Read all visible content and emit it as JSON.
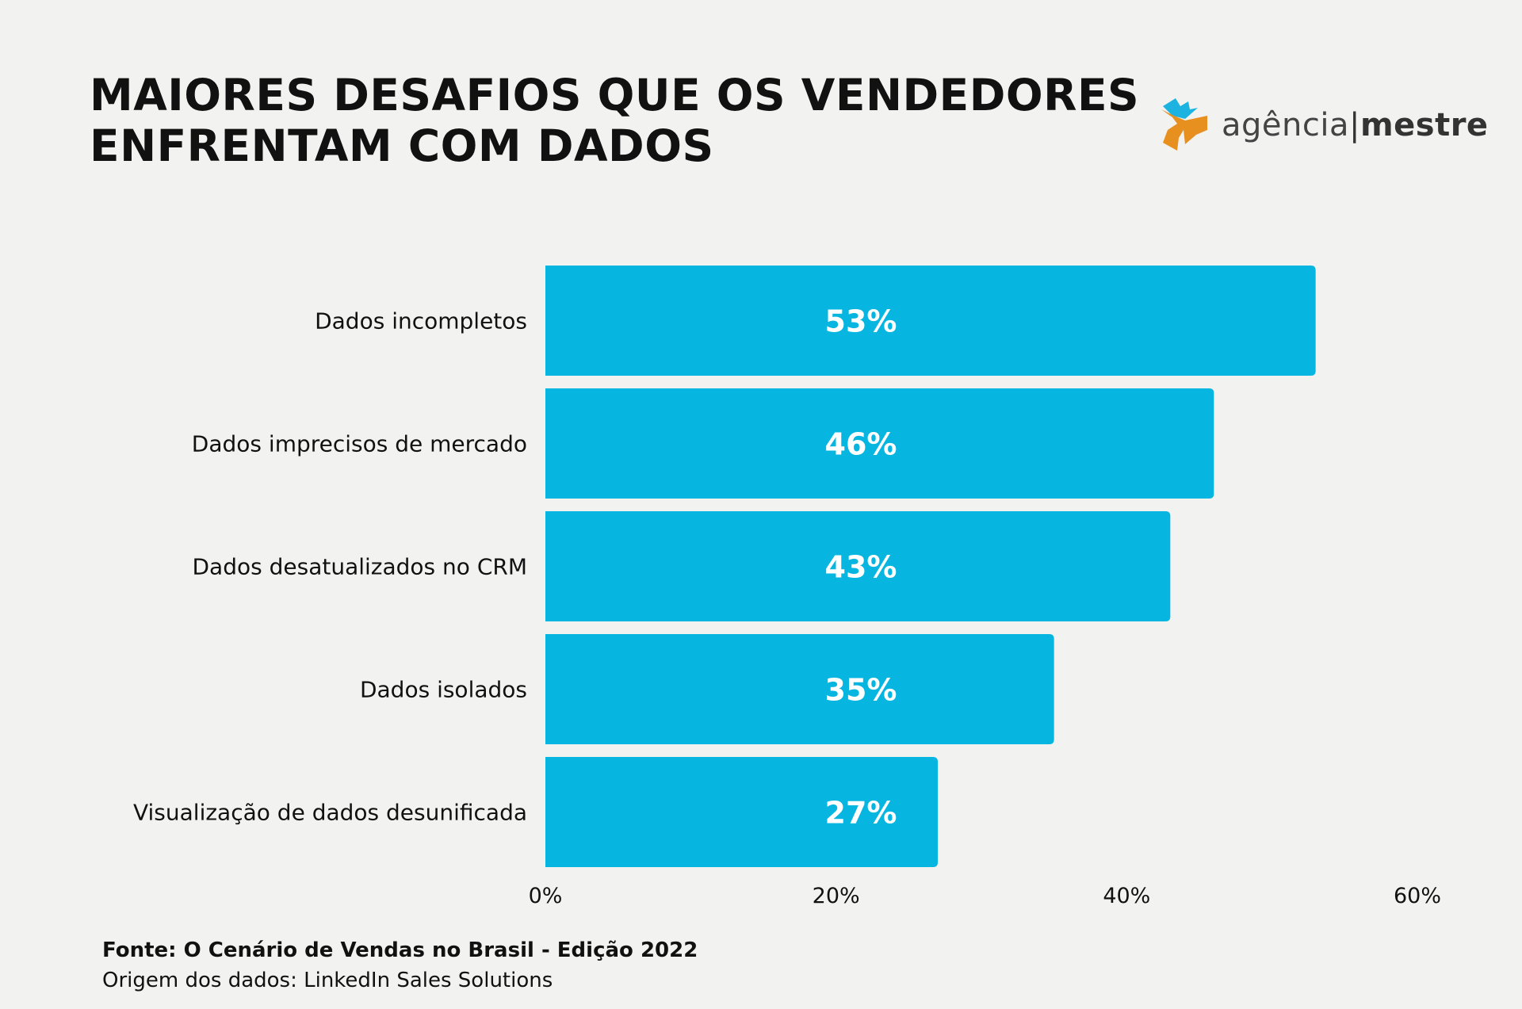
{
  "title_lines": [
    "MAIORES DESAFIOS QUE OS VENDEDORES",
    "ENFRENTAM COM DADOS"
  ],
  "logo": {
    "text_light": "agência",
    "separator": "|",
    "text_bold": "mestre",
    "colors": [
      "#1cb3e0",
      "#e8901f"
    ]
  },
  "chart_data": {
    "type": "bar",
    "orientation": "horizontal",
    "categories": [
      "Dados incompletos",
      "Dados imprecisos de mercado",
      "Dados desatualizados no CRM",
      "Dados isolados",
      "Visualização de dados desunificada"
    ],
    "values": [
      53,
      46,
      43,
      35,
      27
    ],
    "data_labels": [
      "53%",
      "46%",
      "43%",
      "35%",
      "27%"
    ],
    "xlim": [
      0,
      60
    ],
    "x_ticks": [
      0,
      20,
      40,
      60
    ],
    "x_tick_labels": [
      "0%",
      "20%",
      "40%",
      "60%"
    ],
    "grid": false,
    "bar_color": "#07b6e0",
    "label_color": "#ffffff"
  },
  "footer": {
    "source": "Fonte: O Cenário de Vendas no Brasil - Edição 2022",
    "origin": "Origem dos dados: LinkedIn Sales Solutions"
  }
}
